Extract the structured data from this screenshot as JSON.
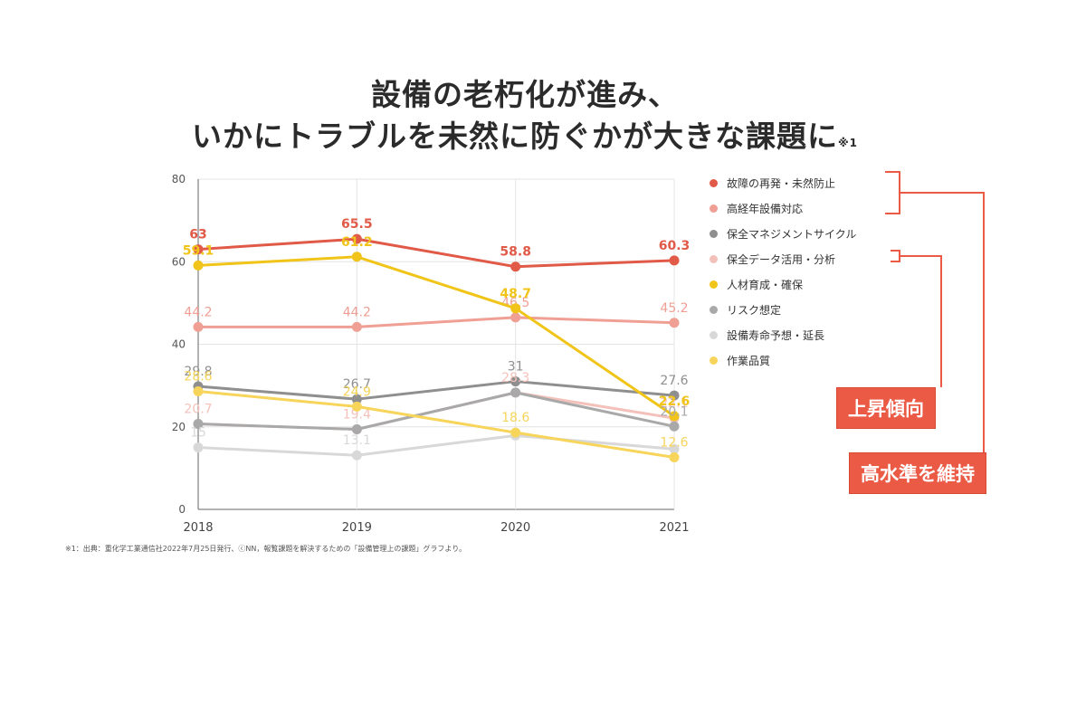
{
  "title": {
    "line1": "設備の老朽化が進み、",
    "line2": "いかにトラブルを未然に防ぐかが大きな課題に",
    "note_mark": "※1"
  },
  "footnote": "※1：出典：重化学工業通信社2022年7月25日発行、ⓒNN，報覧課題を解決するための「設備管理上の課題」グラフより。",
  "badges": {
    "rising": "上昇傾向",
    "maintain": "高水準を維持"
  },
  "colors": {
    "accent": "#ea5a45",
    "axis": "#777777",
    "grid": "#e4e4e4"
  },
  "chart_data": {
    "type": "line",
    "title": "",
    "xlabel": "",
    "ylabel": "",
    "categories": [
      "2018",
      "2019",
      "2020",
      "2021"
    ],
    "ylim": [
      0,
      80
    ],
    "yticks": [
      0,
      20,
      40,
      60,
      80
    ],
    "legend_position": "right",
    "series": [
      {
        "name": "故障の再発・未然防止",
        "color": "#e05a47",
        "values": [
          63,
          65.5,
          58.8,
          60.3
        ],
        "labels": [
          "63",
          "65.5",
          "58.8",
          "60.3"
        ]
      },
      {
        "name": "高経年設備対応",
        "color": "#ef9f94",
        "values": [
          44.2,
          44.2,
          46.5,
          45.2
        ],
        "labels": [
          "44.2",
          "44.2",
          "46.5",
          "45.2"
        ]
      },
      {
        "name": "保全マネジメントサイクル",
        "color": "#8f8f8f",
        "values": [
          29.8,
          26.7,
          31,
          27.6
        ],
        "labels": [
          "29.8",
          "26.7",
          "31",
          "27.6"
        ]
      },
      {
        "name": "保全データ活用・分析",
        "color": "#f4c1ba",
        "values": [
          20.7,
          19.4,
          28.3,
          22.1
        ],
        "labels": [
          "20.7",
          "19.4",
          "28.3",
          "22.1"
        ]
      },
      {
        "name": "人材育成・確保",
        "color": "#f0c419",
        "values": [
          59.1,
          61.2,
          48.7,
          22.6
        ],
        "labels": [
          "59.1",
          "61.2",
          "48.7",
          "22.6"
        ]
      },
      {
        "name": "リスク想定",
        "color": "#a9a9a9",
        "values": [
          20.7,
          19.4,
          28.3,
          20.1
        ],
        "labels": [
          "",
          "",
          "",
          "20.1"
        ]
      },
      {
        "name": "設備寿命予想・延長",
        "color": "#d8d8d8",
        "values": [
          15,
          13.1,
          17.9,
          14.6
        ],
        "labels": [
          "15",
          "13.1",
          "",
          ""
        ]
      },
      {
        "name": "作業品質",
        "color": "#f7d45a",
        "values": [
          28.6,
          24.9,
          18.6,
          12.6
        ],
        "labels": [
          "28.6",
          "24.9",
          "18.6",
          "12.6"
        ]
      }
    ]
  }
}
